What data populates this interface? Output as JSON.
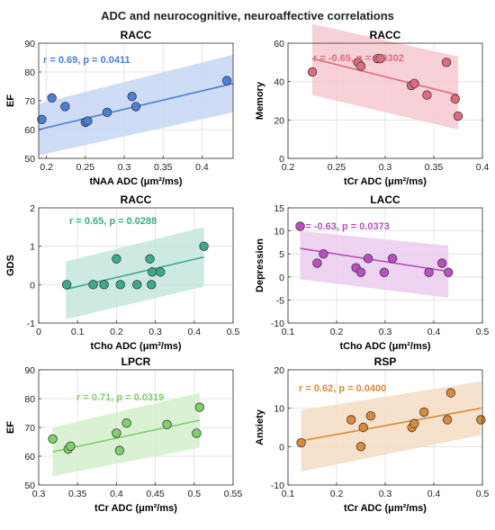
{
  "figure": {
    "title": "ADC and neurocognitive, neuroaffective correlations"
  },
  "chart_data": [
    {
      "type": "scatter",
      "title": "RACC",
      "xlabel": "tNAA ADC (μm²/ms)",
      "ylabel": "EF",
      "xlim": [
        0.19,
        0.44
      ],
      "ylim": [
        50,
        90
      ],
      "xticks": [
        0.2,
        0.25,
        0.3,
        0.35,
        0.4
      ],
      "yticks": [
        50,
        60,
        70,
        80,
        90
      ],
      "xtick_labels": [
        "0.2",
        "0.25",
        "0.3",
        "0.35",
        "0.4"
      ],
      "ytick_labels": [
        "50",
        "60",
        "70",
        "80",
        "90"
      ],
      "annotation": "r = 0.69, p = 0.0411",
      "color": "#4a7fd6",
      "band_color": "#c6d6f5",
      "grid": true,
      "x": [
        0.194,
        0.207,
        0.224,
        0.25,
        0.253,
        0.278,
        0.31,
        0.315,
        0.432
      ],
      "y": [
        63.5,
        71,
        68,
        62.5,
        63,
        66,
        71.5,
        68,
        77
      ],
      "fit": {
        "x": [
          0.19,
          0.44
        ],
        "y": [
          60,
          76
        ]
      },
      "band": {
        "x": [
          0.19,
          0.44
        ],
        "lower": [
          51,
          66
        ],
        "upper": [
          69,
          86
        ]
      }
    },
    {
      "type": "scatter",
      "title": "RACC",
      "xlabel": "tCr ADC (μm²/ms)",
      "ylabel": "Memory",
      "xlim": [
        0.2,
        0.4
      ],
      "ylim": [
        0,
        60
      ],
      "xticks": [
        0.2,
        0.25,
        0.3,
        0.35,
        0.4
      ],
      "yticks": [
        0,
        20,
        40,
        60
      ],
      "xtick_labels": [
        "0.2",
        "0.25",
        "0.3",
        "0.35",
        "0.4"
      ],
      "ytick_labels": [
        "0",
        "20",
        "40",
        "60"
      ],
      "annotation": "r = -0.65, p = 0.0302",
      "color": "#e06b7e",
      "band_color": "#f6c9d0",
      "grid": true,
      "x": [
        0.225,
        0.272,
        0.275,
        0.292,
        0.295,
        0.327,
        0.33,
        0.343,
        0.363,
        0.372,
        0.375
      ],
      "y": [
        45,
        50,
        48,
        52,
        52,
        38,
        39,
        33,
        50,
        31,
        22
      ],
      "fit": {
        "x": [
          0.225,
          0.375
        ],
        "y": [
          52,
          33
        ]
      },
      "band": {
        "x": [
          0.225,
          0.375
        ],
        "lower": [
          33,
          15
        ],
        "upper": [
          70,
          53
        ]
      }
    },
    {
      "type": "scatter",
      "title": "RACC",
      "xlabel": "tCho ADC (μm²/ms)",
      "ylabel": "GDS",
      "xlim": [
        0,
        0.5
      ],
      "ylim": [
        -1,
        2
      ],
      "xticks": [
        0,
        0.1,
        0.2,
        0.3,
        0.4,
        0.5
      ],
      "yticks": [
        -1,
        0,
        1,
        2
      ],
      "xtick_labels": [
        "0",
        "0.1",
        "0.2",
        "0.3",
        "0.4",
        "0.5"
      ],
      "ytick_labels": [
        "-1",
        "0",
        "1",
        "2"
      ],
      "annotation": "r = 0.65, p = 0.0288",
      "color": "#3aab8e",
      "band_color": "#c3e6dc",
      "grid": true,
      "x": [
        0.072,
        0.14,
        0.168,
        0.2,
        0.21,
        0.253,
        0.286,
        0.29,
        0.292,
        0.313,
        0.425
      ],
      "y": [
        0,
        0,
        0,
        0.67,
        0,
        0,
        0.67,
        0,
        0.33,
        0.33,
        1
      ],
      "fit": {
        "x": [
          0.07,
          0.425
        ],
        "y": [
          -0.12,
          0.72
        ]
      },
      "band": {
        "x": [
          0.07,
          0.425
        ],
        "lower": [
          -0.9,
          -0.05
        ],
        "upper": [
          0.6,
          1.5
        ]
      }
    },
    {
      "type": "scatter",
      "title": "LACC",
      "xlabel": "tCho ADC (μm²/ms)",
      "ylabel": "Depression",
      "xlim": [
        0.1,
        0.5
      ],
      "ylim": [
        -10,
        15
      ],
      "xticks": [
        0.1,
        0.2,
        0.3,
        0.4,
        0.5
      ],
      "yticks": [
        -10,
        -5,
        0,
        5,
        10,
        15
      ],
      "xtick_labels": [
        "0.1",
        "0.2",
        "0.3",
        "0.4",
        "0.5"
      ],
      "ytick_labels": [
        "-10",
        "-5",
        "0",
        "5",
        "10",
        "15"
      ],
      "annotation": "r = -0.63, p = 0.0373",
      "color": "#b94fc0",
      "band_color": "#ebcdee",
      "grid": true,
      "x": [
        0.125,
        0.16,
        0.173,
        0.24,
        0.25,
        0.265,
        0.298,
        0.315,
        0.39,
        0.417,
        0.43
      ],
      "y": [
        11,
        3,
        5,
        2,
        1,
        4,
        1,
        4,
        1,
        3,
        1
      ],
      "fit": {
        "x": [
          0.125,
          0.43
        ],
        "y": [
          6.2,
          1.2
        ]
      },
      "band": {
        "x": [
          0.125,
          0.43
        ],
        "lower": [
          -0.5,
          -4.5
        ],
        "upper": [
          10,
          6.8
        ]
      }
    },
    {
      "type": "scatter",
      "title": "LPCR",
      "xlabel": "tCr ADC (μm²/ms)",
      "ylabel": "EF",
      "xlim": [
        0.3,
        0.55
      ],
      "ylim": [
        50,
        90
      ],
      "xticks": [
        0.3,
        0.35,
        0.4,
        0.45,
        0.5,
        0.55
      ],
      "yticks": [
        50,
        60,
        70,
        80,
        90
      ],
      "xtick_labels": [
        "0.3",
        "0.35",
        "0.4",
        "0.45",
        "0.5",
        "0.55"
      ],
      "ytick_labels": [
        "50",
        "60",
        "70",
        "80",
        "90"
      ],
      "annotation": "r = 0.71, p = 0.0319",
      "color": "#7fcf6a",
      "band_color": "#d3efcb",
      "grid": true,
      "x": [
        0.318,
        0.338,
        0.341,
        0.4,
        0.404,
        0.413,
        0.465,
        0.503,
        0.507
      ],
      "y": [
        66,
        62.5,
        63.5,
        68,
        62,
        71.5,
        71,
        68,
        77
      ],
      "fit": {
        "x": [
          0.318,
          0.507
        ],
        "y": [
          61.5,
          72.5
        ]
      },
      "band": {
        "x": [
          0.318,
          0.507
        ],
        "lower": [
          53,
          63
        ],
        "upper": [
          70,
          82
        ]
      }
    },
    {
      "type": "scatter",
      "title": "RSP",
      "xlabel": "tCr ADC (μm²/ms)",
      "ylabel": "Anxiety",
      "xlim": [
        0.1,
        0.5
      ],
      "ylim": [
        -10,
        20
      ],
      "xticks": [
        0.1,
        0.2,
        0.3,
        0.4,
        0.5
      ],
      "yticks": [
        -10,
        0,
        10,
        20
      ],
      "xtick_labels": [
        "0.1",
        "0.2",
        "0.3",
        "0.4",
        "0.5"
      ],
      "ytick_labels": [
        "-10",
        "0",
        "10",
        "20"
      ],
      "annotation": "r = 0.62, p = 0.0400",
      "color": "#d98b3a",
      "band_color": "#f5dcc4",
      "grid": true,
      "x": [
        0.127,
        0.23,
        0.25,
        0.255,
        0.27,
        0.355,
        0.36,
        0.38,
        0.428,
        0.435,
        0.497
      ],
      "y": [
        1,
        7,
        0,
        5,
        8,
        5,
        6,
        9,
        7,
        14,
        7
      ],
      "fit": {
        "x": [
          0.127,
          0.497
        ],
        "y": [
          1.5,
          10
        ]
      },
      "band": {
        "x": [
          0.127,
          0.497
        ],
        "lower": [
          -6.5,
          3
        ],
        "upper": [
          9.5,
          17
        ]
      }
    }
  ]
}
